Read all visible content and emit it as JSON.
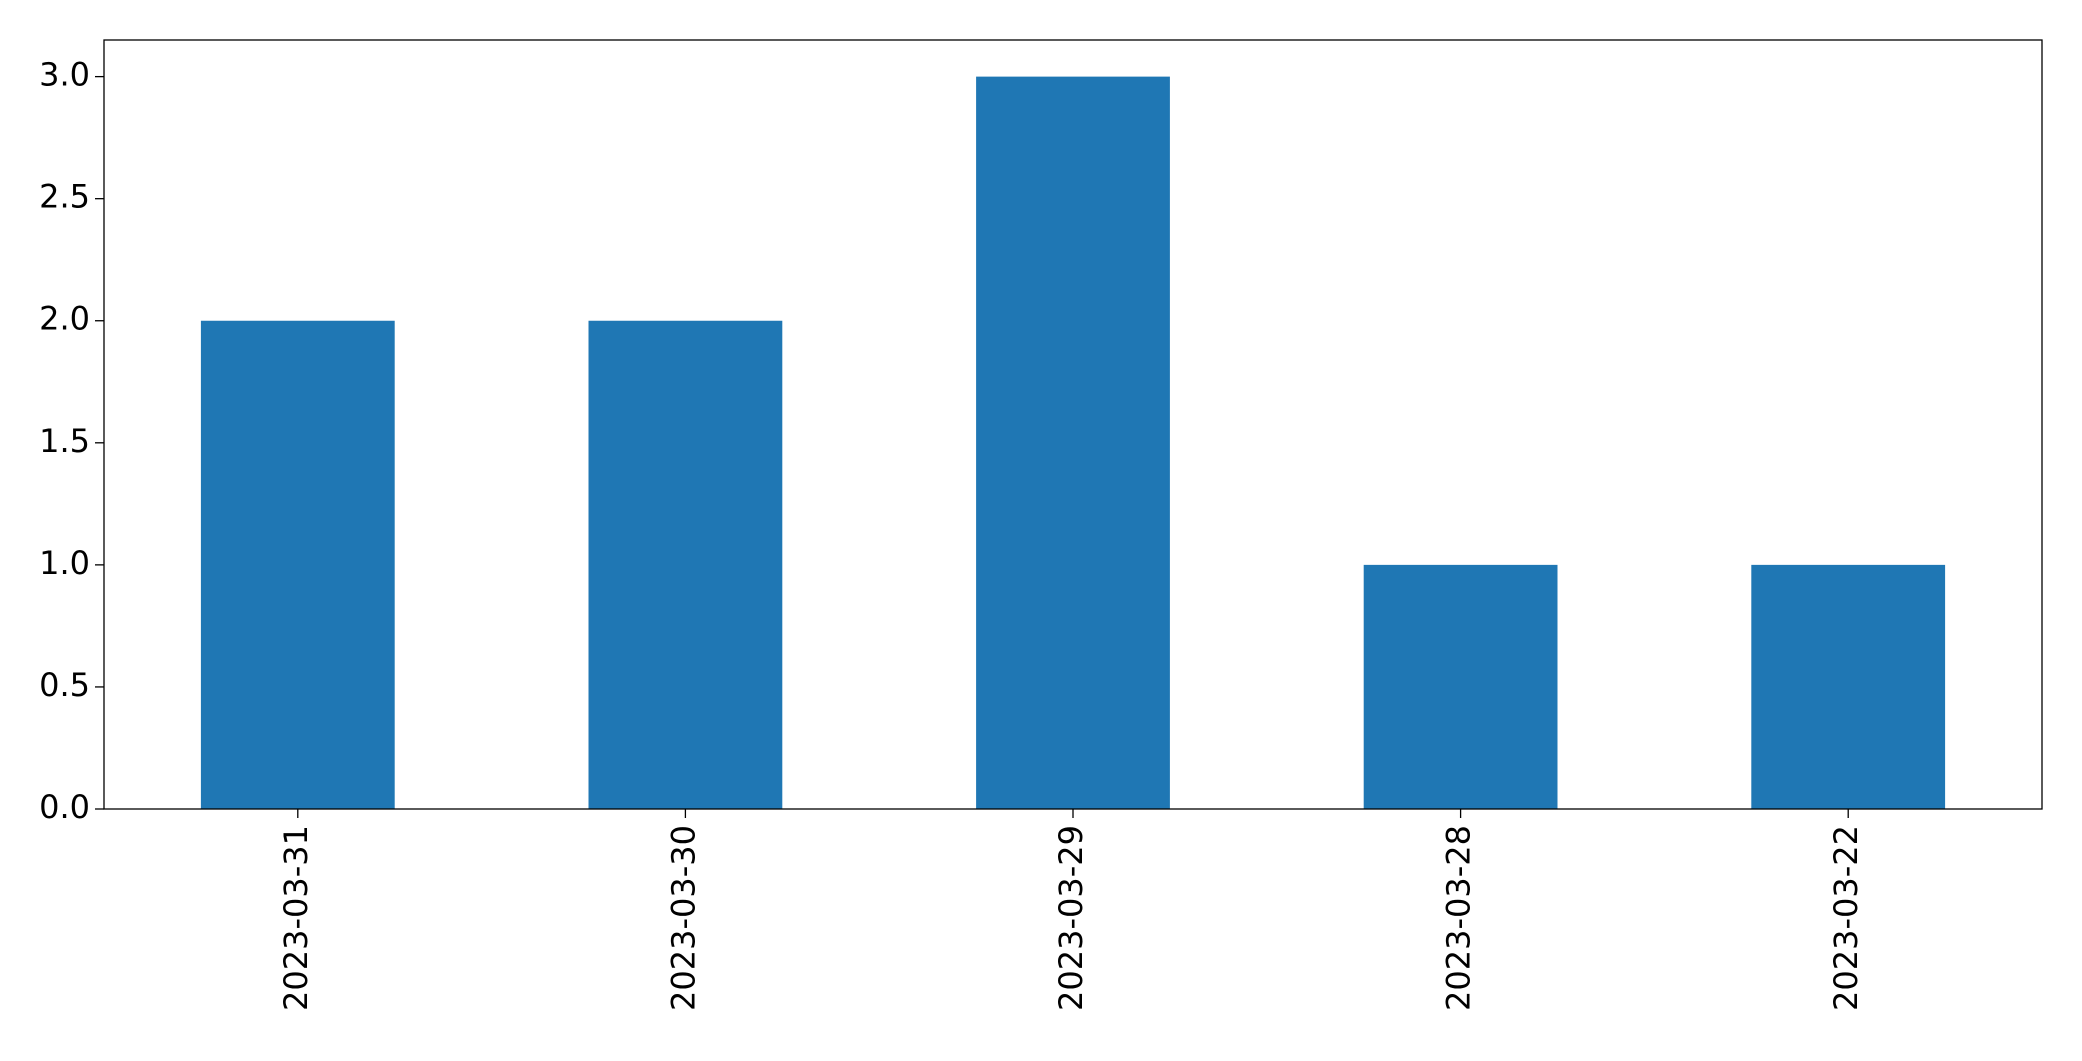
{
  "chart_data": {
    "type": "bar",
    "categories": [
      "2023-03-31",
      "2023-03-30",
      "2023-03-29",
      "2023-03-28",
      "2023-03-22"
    ],
    "values": [
      2,
      2,
      3,
      1,
      1
    ],
    "color": "#1f77b4",
    "ylim": [
      0,
      3.15
    ],
    "yticks": [
      {
        "value": 0,
        "label": "0.0"
      },
      {
        "value": 0.5,
        "label": "0.5"
      },
      {
        "value": 1,
        "label": "1.0"
      },
      {
        "value": 1.5,
        "label": "1.5"
      },
      {
        "value": 2,
        "label": "2.0"
      },
      {
        "value": 2.5,
        "label": "2.5"
      },
      {
        "value": 3,
        "label": "3.0"
      }
    ],
    "grid": false
  }
}
